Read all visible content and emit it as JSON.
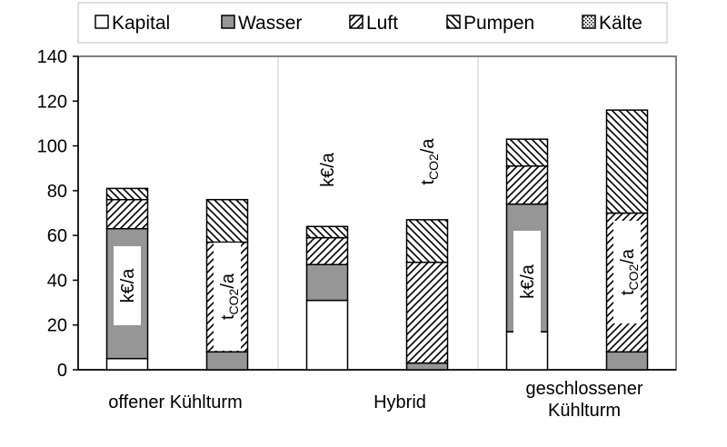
{
  "chart_data": {
    "type": "bar",
    "stacked": true,
    "title": "",
    "xlabel": "",
    "ylabel": "",
    "ylim": [
      0,
      140
    ],
    "yticks": [
      0,
      20,
      40,
      60,
      80,
      100,
      120,
      140
    ],
    "grid": "vertical lines between category groups",
    "legend_position": "top",
    "groups": [
      "offener Kühlturm",
      "Hybrid",
      "geschlossener|Kühlturm"
    ],
    "bars": [
      {
        "group": 0,
        "unit": "k€/a",
        "unit_main": "k€/a",
        "unit_sub": "",
        "label_inside": true
      },
      {
        "group": 0,
        "unit": "tCO2/a",
        "unit_main": "t",
        "unit_sub": "CO2",
        "unit_tail": "/a",
        "label_inside": true
      },
      {
        "group": 1,
        "unit": "k€/a",
        "unit_main": "k€/a",
        "unit_sub": "",
        "label_inside": false
      },
      {
        "group": 1,
        "unit": "tCO2/a",
        "unit_main": "t",
        "unit_sub": "CO2",
        "unit_tail": "/a",
        "label_inside": false
      },
      {
        "group": 2,
        "unit": "k€/a",
        "unit_main": "k€/a",
        "unit_sub": "",
        "label_inside": true
      },
      {
        "group": 2,
        "unit": "tCO2/a",
        "unit_main": "t",
        "unit_sub": "CO2",
        "unit_tail": "/a",
        "label_inside": true
      }
    ],
    "series": [
      {
        "name": "Kapital",
        "pattern": "white",
        "values": [
          5,
          0,
          31,
          0,
          17,
          0
        ]
      },
      {
        "name": "Wasser",
        "pattern": "gray",
        "values": [
          58,
          8,
          16,
          3,
          57,
          8
        ]
      },
      {
        "name": "Luft",
        "pattern": "diag-forward",
        "values": [
          13,
          49,
          12,
          45,
          17,
          62
        ]
      },
      {
        "name": "Pumpen",
        "pattern": "diag-backward",
        "values": [
          5,
          19,
          5,
          19,
          12,
          46
        ]
      },
      {
        "name": "Kälte",
        "pattern": "dots",
        "values": [
          0,
          0,
          0,
          0,
          0,
          0
        ]
      }
    ],
    "colors": {
      "gray": "#969696",
      "black": "#000000",
      "white": "#ffffff",
      "frame": "#808080"
    }
  }
}
